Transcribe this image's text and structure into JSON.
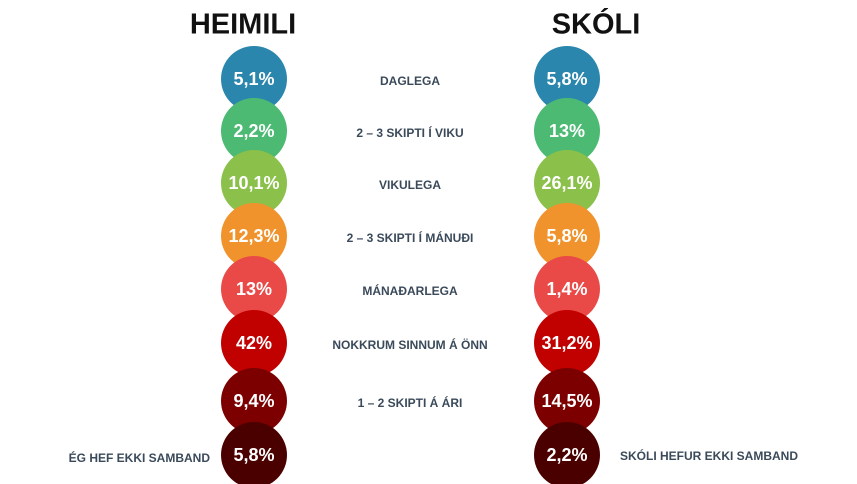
{
  "chart_data": {
    "type": "dots",
    "categories": [
      "DAGLEGA",
      "2 – 3 SKIPTI Í VIKU",
      "VIKULEGA",
      "2 – 3 SKIPTI Í MÁNUÐI",
      "MÁNAÐARLEGA",
      "NOKKRUM SINNUM Á ÖNN",
      "1 – 2 SKIPTI Á ÁRI",
      null
    ],
    "colors": [
      "#2a86ad",
      "#4cba72",
      "#8bc04a",
      "#f0932c",
      "#e94a47",
      "#c10000",
      "#7c0000",
      "#4b0000"
    ],
    "series": [
      {
        "name": "HEIMILI",
        "values": [
          5.1,
          2.2,
          10.1,
          12.3,
          13,
          42,
          9.4,
          5.8
        ],
        "value_labels": [
          "5,1%",
          "2,2%",
          "10,1%",
          "12,3%",
          "13%",
          "42%",
          "9,4%",
          "5,8%"
        ]
      },
      {
        "name": "SKÓLI",
        "values": [
          5.8,
          13,
          26.1,
          5.8,
          1.4,
          31.2,
          14.5,
          2.2
        ],
        "value_labels": [
          "5,8%",
          "13%",
          "26,1%",
          "5,8%",
          "1,4%",
          "31,2%",
          "14,5%",
          "2,2%"
        ]
      }
    ],
    "annotations": [
      "ÉG HEF EKKI SAMBAND",
      "SKÓLI HEFUR EKKI SAMBAND"
    ]
  }
}
